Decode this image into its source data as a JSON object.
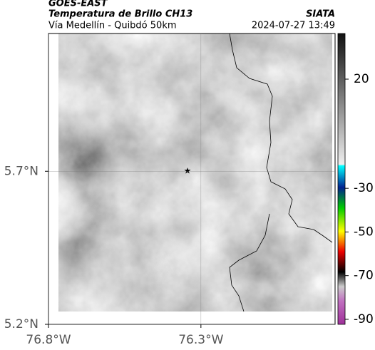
{
  "header": {
    "product": "GOES-EAST",
    "title": "Temperatura de Brillo CH13",
    "subtitle": "Vía Medellín - Quibdó 50km",
    "source": "SIATA",
    "datetime": "2024-07-27 13:49"
  },
  "map": {
    "xlim": [
      -76.8,
      -75.86
    ],
    "ylim": [
      5.2,
      6.15
    ],
    "xticks": [
      {
        "value": -76.8,
        "label": "76.8°W"
      },
      {
        "value": -76.3,
        "label": "76.3°W"
      }
    ],
    "yticks": [
      {
        "value": 5.2,
        "label": "5.2°N"
      },
      {
        "value": 5.7,
        "label": "5.7°N"
      }
    ]
  },
  "colorbar": {
    "lim": [
      -92.3,
      40.9
    ],
    "ticks": [
      20,
      -30,
      -50,
      -70,
      -90
    ]
  }
}
